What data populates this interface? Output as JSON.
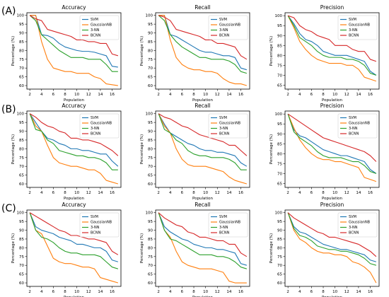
{
  "colors": {
    "SVM": "#1f77b4",
    "GaussianNB": "#ff7f0e",
    "3-NN": "#2ca02c",
    "BCNN": "#d62728"
  },
  "panel_labels": [
    "(A)",
    "(B)",
    "(C)"
  ],
  "chart_data": [
    {
      "type": "line",
      "title": "Accuracy",
      "xlabel": "Population",
      "ylabel": "Percentage (%)",
      "xlim": [
        1.5,
        17.5
      ],
      "ylim": [
        58,
        101.5
      ],
      "xticks": [
        "2",
        "4",
        "6",
        "8",
        "10",
        "12",
        "14",
        "16"
      ],
      "yticks": [
        "60",
        "65",
        "70",
        "75",
        "80",
        "85",
        "90",
        "95",
        "100"
      ],
      "grid": false,
      "legend": "top-right",
      "x": [
        2,
        3,
        4,
        5,
        6,
        7,
        8,
        9,
        10,
        11,
        12,
        13,
        14,
        15,
        16,
        17
      ],
      "series": [
        {
          "name": "SVM",
          "values": [
            100,
            100,
            89,
            88.5,
            87,
            84,
            82,
            81,
            80,
            79.5,
            79.5,
            79,
            78,
            77,
            71,
            70.5
          ]
        },
        {
          "name": "GaussianNB",
          "values": [
            100,
            100,
            85,
            75,
            70,
            69,
            68,
            68,
            67,
            67,
            67,
            65,
            64,
            61,
            60.5,
            60
          ]
        },
        {
          "name": "3-NN",
          "values": [
            100,
            97,
            89,
            86,
            83,
            80,
            78,
            76,
            76,
            76,
            75,
            75,
            75,
            72,
            68,
            68
          ]
        },
        {
          "name": "BCNN",
          "values": [
            100,
            98,
            97,
            92,
            91,
            90,
            89,
            88,
            86,
            86,
            85,
            85,
            84,
            84,
            78,
            77
          ]
        }
      ]
    },
    {
      "type": "line",
      "title": "Recall",
      "xlabel": "Population",
      "ylabel": "Percentage (%)",
      "xlim": [
        1.5,
        17.5
      ],
      "ylim": [
        58,
        101.5
      ],
      "xticks": [
        "2",
        "4",
        "6",
        "8",
        "10",
        "12",
        "14",
        "16"
      ],
      "yticks": [
        "60",
        "65",
        "70",
        "75",
        "80",
        "85",
        "90",
        "95",
        "100"
      ],
      "grid": false,
      "legend": "top-right",
      "x": [
        2,
        3,
        4,
        5,
        6,
        7,
        8,
        9,
        10,
        11,
        12,
        13,
        14,
        15,
        16,
        17
      ],
      "series": [
        {
          "name": "SVM",
          "values": [
            100,
            100,
            89,
            88,
            86,
            84,
            82,
            80,
            79,
            79,
            78,
            77,
            77,
            76,
            70,
            69
          ]
        },
        {
          "name": "GaussianNB",
          "values": [
            100,
            100,
            86,
            76,
            72,
            70,
            69,
            69,
            68,
            68,
            67,
            64,
            62,
            61,
            61,
            60
          ]
        },
        {
          "name": "3-NN",
          "values": [
            100,
            97,
            89,
            85,
            82,
            80,
            78,
            76,
            76,
            75,
            75,
            75,
            74,
            72,
            68,
            67
          ]
        },
        {
          "name": "BCNN",
          "values": [
            100,
            99,
            97,
            92,
            91,
            90,
            89,
            88,
            86,
            86,
            84,
            84,
            83,
            82,
            77,
            75
          ]
        }
      ]
    },
    {
      "type": "line",
      "title": "Precision",
      "xlabel": "Population",
      "ylabel": "Percentage (%)",
      "xlim": [
        1.5,
        17.5
      ],
      "ylim": [
        63,
        101.5
      ],
      "xticks": [
        "2",
        "4",
        "6",
        "8",
        "10",
        "12",
        "14",
        "16"
      ],
      "yticks": [
        "65",
        "70",
        "75",
        "80",
        "85",
        "90",
        "95",
        "100"
      ],
      "grid": false,
      "legend": "top-right",
      "x": [
        2,
        3,
        4,
        5,
        6,
        7,
        8,
        9,
        10,
        11,
        12,
        13,
        14,
        15,
        16,
        17
      ],
      "series": [
        {
          "name": "SVM",
          "values": [
            100,
            96,
            91,
            88,
            87,
            85,
            82,
            81,
            80,
            80,
            80,
            79,
            78,
            77,
            72,
            70
          ]
        },
        {
          "name": "GaussianNB",
          "values": [
            100,
            94,
            87,
            83,
            80,
            78,
            77,
            76,
            76,
            76,
            75,
            75,
            73,
            69,
            68,
            67
          ]
        },
        {
          "name": "3-NN",
          "values": [
            100,
            95,
            89,
            87,
            85,
            82,
            80,
            79,
            79,
            79,
            78,
            78,
            77,
            75,
            71,
            70
          ]
        },
        {
          "name": "BCNN",
          "values": [
            100,
            99,
            95,
            93,
            92,
            90,
            89,
            88,
            85,
            85,
            85,
            83,
            82,
            82,
            78,
            77
          ]
        }
      ]
    },
    {
      "type": "line",
      "title": "Accuracy",
      "xlabel": "Population",
      "ylabel": "Percentage (%)",
      "xlim": [
        1.5,
        17.5
      ],
      "ylim": [
        58,
        101.5
      ],
      "xticks": [
        "2",
        "4",
        "6",
        "8",
        "10",
        "12",
        "14",
        "16"
      ],
      "yticks": [
        "60",
        "65",
        "70",
        "75",
        "80",
        "85",
        "90",
        "95",
        "100"
      ],
      "grid": false,
      "legend": "top-right",
      "x": [
        2,
        3,
        4,
        5,
        6,
        7,
        8,
        9,
        10,
        11,
        12,
        13,
        14,
        15,
        16,
        17
      ],
      "series": [
        {
          "name": "SVM",
          "values": [
            100,
            95,
            90,
            86,
            85,
            83,
            82,
            80,
            80,
            79,
            79,
            78,
            77,
            77,
            73,
            70
          ]
        },
        {
          "name": "GaussianNB",
          "values": [
            100,
            93,
            90,
            82,
            75,
            72,
            71,
            70,
            70,
            69,
            68,
            68,
            66,
            62,
            61,
            60
          ]
        },
        {
          "name": "3-NN",
          "values": [
            100,
            91,
            90,
            85,
            83,
            79,
            78,
            77,
            76,
            76,
            75,
            75,
            74,
            72,
            68,
            68
          ]
        },
        {
          "name": "BCNN",
          "values": [
            100,
            98,
            95,
            93,
            92,
            90,
            89,
            86,
            86,
            85,
            85,
            84,
            83,
            81,
            79,
            76
          ]
        }
      ]
    },
    {
      "type": "line",
      "title": "Recall",
      "xlabel": "Population",
      "ylabel": "Percentage (%)",
      "xlim": [
        1.5,
        17.5
      ],
      "ylim": [
        58,
        101.5
      ],
      "xticks": [
        "2",
        "4",
        "6",
        "8",
        "10",
        "12",
        "14",
        "16"
      ],
      "yticks": [
        "60",
        "65",
        "70",
        "75",
        "80",
        "85",
        "90",
        "95",
        "100"
      ],
      "grid": false,
      "legend": "top-right",
      "x": [
        2,
        3,
        4,
        5,
        6,
        7,
        8,
        9,
        10,
        11,
        12,
        13,
        14,
        15,
        16,
        17
      ],
      "series": [
        {
          "name": "SVM",
          "values": [
            100,
            94,
            89,
            87,
            85,
            83,
            82,
            80,
            79,
            79,
            78,
            78,
            77,
            76,
            72,
            70
          ]
        },
        {
          "name": "GaussianNB",
          "values": [
            100,
            93,
            89,
            80,
            74,
            71,
            70,
            70,
            70,
            69,
            68,
            67,
            64,
            62,
            61,
            60
          ]
        },
        {
          "name": "3-NN",
          "values": [
            100,
            91,
            89,
            85,
            83,
            79,
            77,
            76,
            76,
            75,
            75,
            75,
            74,
            72,
            68,
            68
          ]
        },
        {
          "name": "BCNN",
          "values": [
            100,
            98,
            97,
            95,
            93,
            92,
            90,
            88,
            87,
            86,
            85,
            84,
            82,
            82,
            79,
            76
          ]
        }
      ]
    },
    {
      "type": "line",
      "title": "Precision",
      "xlabel": "Population",
      "ylabel": "Percentage (%)",
      "xlim": [
        1.5,
        17.5
      ],
      "ylim": [
        63,
        101.5
      ],
      "xticks": [
        "2",
        "4",
        "6",
        "8",
        "10",
        "12",
        "14",
        "16"
      ],
      "yticks": [
        "65",
        "70",
        "75",
        "80",
        "85",
        "90",
        "95",
        "100"
      ],
      "grid": false,
      "legend": "top-right",
      "x": [
        2,
        3,
        4,
        5,
        6,
        7,
        8,
        9,
        10,
        11,
        12,
        13,
        14,
        15,
        16,
        17
      ],
      "series": [
        {
          "name": "SVM",
          "values": [
            100,
            92,
            89,
            88,
            86,
            84,
            82,
            81,
            80,
            79,
            79,
            78,
            77,
            76,
            72,
            70
          ]
        },
        {
          "name": "GaussianNB",
          "values": [
            100,
            93,
            87,
            83,
            80,
            78,
            77,
            77,
            76,
            76,
            75,
            74,
            73,
            68,
            67,
            66
          ]
        },
        {
          "name": "3-NN",
          "values": [
            100,
            91,
            88,
            86,
            84,
            81,
            79,
            78,
            78,
            78,
            77,
            76,
            76,
            74,
            71,
            70
          ]
        },
        {
          "name": "BCNN",
          "values": [
            100,
            98,
            96,
            94,
            92,
            90,
            88,
            87,
            86,
            85,
            84,
            83,
            82,
            81,
            79,
            76
          ]
        }
      ]
    },
    {
      "type": "line",
      "title": "Accuracy",
      "xlabel": "Population",
      "ylabel": "Percentage (%)",
      "xlim": [
        1.5,
        17.5
      ],
      "ylim": [
        58,
        101.5
      ],
      "xticks": [
        "2",
        "4",
        "6",
        "8",
        "10",
        "12",
        "14",
        "16"
      ],
      "yticks": [
        "60",
        "65",
        "70",
        "75",
        "80",
        "85",
        "90",
        "95",
        "100"
      ],
      "grid": false,
      "legend": "top-right",
      "x": [
        2,
        3,
        4,
        5,
        6,
        7,
        8,
        9,
        10,
        11,
        12,
        13,
        14,
        15,
        16,
        17
      ],
      "series": [
        {
          "name": "SVM",
          "values": [
            100,
            92,
            90,
            89,
            88,
            86,
            85,
            84,
            82,
            82,
            81,
            80,
            80,
            78,
            73,
            72
          ]
        },
        {
          "name": "GaussianNB",
          "values": [
            100,
            90,
            88,
            81,
            74,
            72,
            71,
            71,
            70,
            69,
            69,
            68,
            63,
            62,
            61,
            60
          ]
        },
        {
          "name": "3-NN",
          "values": [
            100,
            90,
            86,
            85,
            83,
            80,
            78,
            77,
            77,
            76,
            76,
            76,
            75,
            72,
            69,
            68
          ]
        },
        {
          "name": "BCNN",
          "values": [
            100,
            98,
            96,
            94,
            92,
            90,
            89,
            87,
            87,
            86,
            85,
            85,
            84,
            83,
            78,
            76
          ]
        }
      ]
    },
    {
      "type": "line",
      "title": "Recall",
      "xlabel": "Population",
      "ylabel": "Percentage (%)",
      "xlim": [
        1.5,
        17.5
      ],
      "ylim": [
        58,
        101.5
      ],
      "xticks": [
        "2",
        "4",
        "6",
        "8",
        "10",
        "12",
        "14",
        "16"
      ],
      "yticks": [
        "60",
        "65",
        "70",
        "75",
        "80",
        "85",
        "90",
        "95",
        "100"
      ],
      "grid": false,
      "legend": "top-right",
      "x": [
        2,
        3,
        4,
        5,
        6,
        7,
        8,
        9,
        10,
        11,
        12,
        13,
        14,
        15,
        16,
        17
      ],
      "series": [
        {
          "name": "SVM",
          "values": [
            100,
            92,
            89,
            87,
            85,
            84,
            82,
            81,
            80,
            80,
            79,
            79,
            78,
            77,
            71,
            70
          ]
        },
        {
          "name": "GaussianNB",
          "values": [
            100,
            90,
            86,
            78,
            72,
            70,
            69,
            68,
            68,
            68,
            67,
            66,
            61,
            60,
            60,
            60
          ]
        },
        {
          "name": "3-NN",
          "values": [
            100,
            90,
            85,
            84,
            82,
            80,
            78,
            76,
            76,
            76,
            75,
            75,
            74,
            72,
            69,
            68
          ]
        },
        {
          "name": "BCNN",
          "values": [
            100,
            97,
            95,
            93,
            92,
            89,
            88,
            86,
            86,
            85,
            84,
            84,
            82,
            82,
            77,
            75
          ]
        }
      ]
    },
    {
      "type": "line",
      "title": "Precision",
      "xlabel": "Population",
      "ylabel": "Percentage (%)",
      "xlim": [
        1.5,
        17.5
      ],
      "ylim": [
        58,
        101.5
      ],
      "xticks": [
        "2",
        "4",
        "6",
        "8",
        "10",
        "12",
        "14",
        "16"
      ],
      "yticks": [
        "60",
        "65",
        "70",
        "75",
        "80",
        "85",
        "90",
        "95",
        "100"
      ],
      "grid": false,
      "legend": "top-right",
      "x": [
        2,
        3,
        4,
        5,
        6,
        7,
        8,
        9,
        10,
        11,
        12,
        13,
        14,
        15,
        16,
        17
      ],
      "series": [
        {
          "name": "SVM",
          "values": [
            100,
            92,
            89,
            88,
            86,
            84,
            82,
            81,
            80,
            79,
            79,
            78,
            77,
            76,
            73,
            72
          ]
        },
        {
          "name": "GaussianNB",
          "values": [
            100,
            90,
            85,
            83,
            80,
            78,
            77,
            77,
            76,
            76,
            75,
            72,
            71,
            69,
            66,
            60
          ]
        },
        {
          "name": "3-NN",
          "values": [
            100,
            91,
            87,
            86,
            84,
            81,
            80,
            79,
            79,
            78,
            78,
            77,
            76,
            74,
            71,
            70
          ]
        },
        {
          "name": "BCNN",
          "values": [
            100,
            97,
            95,
            93,
            91,
            89,
            88,
            86,
            86,
            85,
            84,
            83,
            82,
            80,
            78,
            75
          ]
        }
      ]
    }
  ]
}
